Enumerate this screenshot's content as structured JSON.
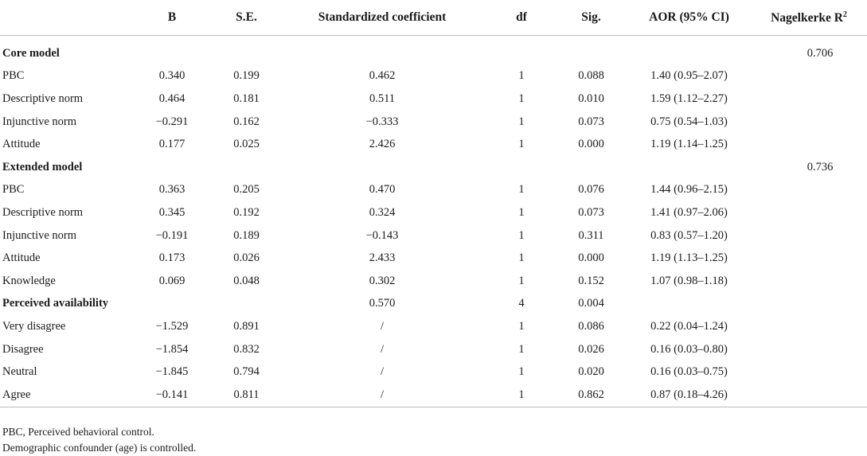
{
  "columns": {
    "label": "",
    "b": "B",
    "se": "S.E.",
    "std": "Standardized coefficient",
    "df": "df",
    "sig": "Sig.",
    "aor": "AOR (95% CI)",
    "r2": "Nagelkerke R",
    "r2_sup": "2"
  },
  "rows": [
    {
      "section": true,
      "label": "Core model",
      "b": "",
      "se": "",
      "std": "",
      "df": "",
      "sig": "",
      "aor": "",
      "r2": "0.706"
    },
    {
      "label": "PBC",
      "b": "0.340",
      "se": "0.199",
      "std": "0.462",
      "df": "1",
      "sig": "0.088",
      "aor": "1.40 (0.95–2.07)",
      "r2": ""
    },
    {
      "label": "Descriptive norm",
      "b": "0.464",
      "se": "0.181",
      "std": "0.511",
      "df": "1",
      "sig": "0.010",
      "aor": "1.59 (1.12–2.27)",
      "r2": ""
    },
    {
      "label": "Injunctive norm",
      "b": "−0.291",
      "se": "0.162",
      "std": "−0.333",
      "df": "1",
      "sig": "0.073",
      "aor": "0.75 (0.54–1.03)",
      "r2": ""
    },
    {
      "label": "Attitude",
      "b": "0.177",
      "se": "0.025",
      "std": "2.426",
      "df": "1",
      "sig": "0.000",
      "aor": "1.19 (1.14–1.25)",
      "r2": ""
    },
    {
      "section": true,
      "label": "Extended model",
      "b": "",
      "se": "",
      "std": "",
      "df": "",
      "sig": "",
      "aor": "",
      "r2": "0.736"
    },
    {
      "label": "PBC",
      "b": "0.363",
      "se": "0.205",
      "std": "0.470",
      "df": "1",
      "sig": "0.076",
      "aor": "1.44 (0.96–2.15)",
      "r2": ""
    },
    {
      "label": "Descriptive norm",
      "b": "0.345",
      "se": "0.192",
      "std": "0.324",
      "df": "1",
      "sig": "0.073",
      "aor": "1.41 (0.97–2.06)",
      "r2": ""
    },
    {
      "label": "Injunctive norm",
      "b": "−0.191",
      "se": "0.189",
      "std": "−0.143",
      "df": "1",
      "sig": "0.311",
      "aor": "0.83 (0.57–1.20)",
      "r2": ""
    },
    {
      "label": "Attitude",
      "b": "0.173",
      "se": "0.026",
      "std": "2.433",
      "df": "1",
      "sig": "0.000",
      "aor": "1.19 (1.13–1.25)",
      "r2": ""
    },
    {
      "label": "Knowledge",
      "b": "0.069",
      "se": "0.048",
      "std": "0.302",
      "df": "1",
      "sig": "0.152",
      "aor": "1.07 (0.98–1.18)",
      "r2": ""
    },
    {
      "section": true,
      "label": "Perceived availability",
      "b": "",
      "se": "",
      "std": "0.570",
      "df": "4",
      "sig": "0.004",
      "aor": "",
      "r2": ""
    },
    {
      "label": "Very disagree",
      "b": "−1.529",
      "se": "0.891",
      "std": "/",
      "df": "1",
      "sig": "0.086",
      "aor": "0.22 (0.04–1.24)",
      "r2": ""
    },
    {
      "label": "Disagree",
      "b": "−1.854",
      "se": "0.832",
      "std": "/",
      "df": "1",
      "sig": "0.026",
      "aor": "0.16 (0.03–0.80)",
      "r2": ""
    },
    {
      "label": "Neutral",
      "b": "−1.845",
      "se": "0.794",
      "std": "/",
      "df": "1",
      "sig": "0.020",
      "aor": "0.16 (0.03–0.75)",
      "r2": ""
    },
    {
      "label": "Agree",
      "b": "−0.141",
      "se": "0.811",
      "std": "/",
      "df": "1",
      "sig": "0.862",
      "aor": "0.87 (0.18–4.26)",
      "r2": ""
    }
  ],
  "footnotes": [
    "PBC, Perceived behavioral control.",
    "Demographic confounder (age) is controlled."
  ]
}
